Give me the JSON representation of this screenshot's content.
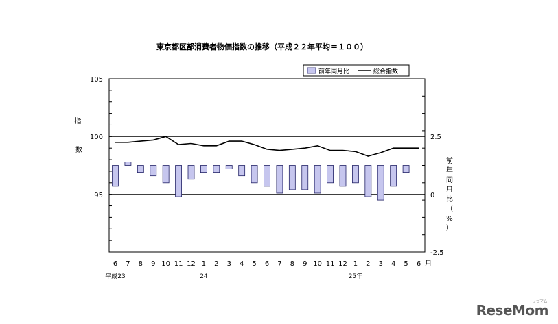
{
  "chart_data": {
    "type": "bar+line",
    "title": "東京都区部消費者物価指数の推移（平成２２年平均＝１００）",
    "legend": {
      "bar": "前年同月比",
      "line": "総合指数"
    },
    "left_axis": {
      "label": "指数",
      "ticks": [
        "105",
        "100",
        "95"
      ],
      "ylim": [
        90,
        105
      ]
    },
    "right_axis": {
      "label": "前年同月比（%）",
      "ticks": [
        "2.5",
        "0",
        "-2.5"
      ],
      "ylim": [
        -2.5,
        2.5
      ]
    },
    "categories": [
      "6",
      "7",
      "8",
      "9",
      "10",
      "11",
      "12",
      "1",
      "2",
      "3",
      "4",
      "5",
      "6",
      "7",
      "8",
      "9",
      "10",
      "11",
      "12",
      "1",
      "2",
      "3",
      "4",
      "5",
      "6"
    ],
    "month_suffix": "月",
    "year_labels": [
      {
        "text": "平成23",
        "index": 0
      },
      {
        "text": "24",
        "index": 7
      },
      {
        "text": "25年",
        "index": 19
      }
    ],
    "series": [
      {
        "name": "総合指数",
        "type": "line",
        "values": [
          99.5,
          99.5,
          99.6,
          99.7,
          100.0,
          99.3,
          99.4,
          99.2,
          99.2,
          99.6,
          99.6,
          99.3,
          98.9,
          98.8,
          98.9,
          99.0,
          99.2,
          98.8,
          98.8,
          98.7,
          98.3,
          98.6,
          99.0,
          99.0,
          99.0
        ]
      },
      {
        "name": "前年同月比",
        "type": "bar",
        "values": [
          -0.6,
          0.1,
          -0.2,
          -0.3,
          -0.5,
          -0.9,
          -0.4,
          -0.2,
          -0.2,
          -0.1,
          -0.3,
          -0.5,
          -0.6,
          -0.8,
          -0.7,
          -0.7,
          -0.8,
          -0.5,
          -0.6,
          -0.5,
          -0.9,
          -1.0,
          -0.6,
          -0.2,
          0.0
        ]
      }
    ],
    "colors": {
      "bar_fill": "#c6c6ee",
      "bar_stroke": "#222266",
      "line": "#000000",
      "frame": "#000000"
    }
  },
  "watermark": {
    "text": "ReseMom",
    "sub": "リセマム"
  }
}
